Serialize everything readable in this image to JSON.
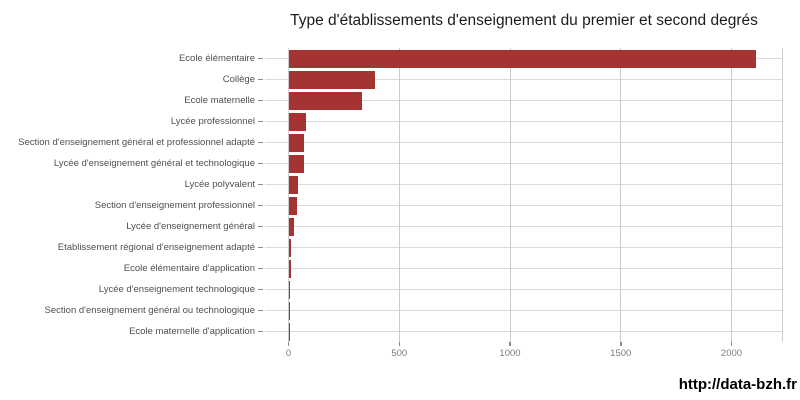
{
  "title": "Type d'établissements d'enseignement du premier et second degrés",
  "footer": {
    "source_url": "http://data-bzh.fr"
  },
  "style": {
    "bar_color": "#a43331",
    "grid_color_h": "#dbdbdb",
    "grid_color_v": "#cccccc",
    "tick_color": "#8a8a8a",
    "category_label_color": "#4f4f4f",
    "axis_text_color": "#7d7d7d",
    "title_color": "#1b1b1b",
    "background_color": "#ffffff"
  },
  "chart_data": {
    "type": "bar",
    "orientation": "horizontal",
    "title": "Type d'établissements d'enseignement du premier et second degrés",
    "categories": [
      "Ecole élémentaire",
      "Collège",
      "Ecole maternelle",
      "Lycée professionnel",
      "Section d'enseignement général et professionnel adapté",
      "Lycée d'enseignement général et technologique",
      "Lycée polyvalent",
      "Section d'enseignement professionnel",
      "Lycée d'enseignement général",
      "Etablissement régional d'enseignement adapté",
      "Ecole élémentaire d'application",
      "Lycée d'enseignement technologique",
      "Section d'enseignement général ou technologique",
      "Ecole maternelle d'application"
    ],
    "values": [
      2110,
      390,
      330,
      80,
      70,
      69,
      45,
      40,
      24,
      11,
      10,
      5,
      2,
      1
    ],
    "xlabel": "",
    "ylabel": "",
    "xlim": [
      0,
      2230
    ],
    "x_ticks": [
      0,
      500,
      1000,
      1500,
      2000
    ],
    "grid": true,
    "legend": false,
    "bar_color": "#a43331",
    "source_label": "http://data-bzh.fr"
  }
}
